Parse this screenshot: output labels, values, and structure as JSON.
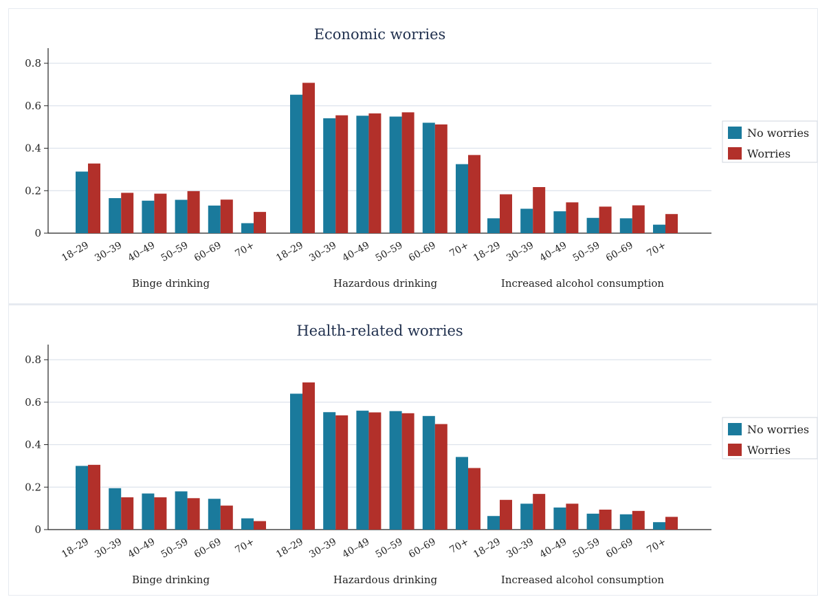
{
  "colors": {
    "no_worries": "#1a7a9c",
    "worries": "#b2302a",
    "grid": "#dde3ec",
    "axis": "#222222"
  },
  "chart_data": [
    {
      "type": "bar",
      "title": "Economic worries",
      "ylim": [
        0,
        0.8
      ],
      "yticks": [
        "0",
        "0.2",
        "0.4",
        "0.6",
        "0.8"
      ],
      "grid": true,
      "legend_position": "right",
      "legend": [
        "No worries",
        "Worries"
      ],
      "groups": [
        {
          "label": "Binge drinking",
          "categories": [
            "18–29",
            "30–39",
            "40–49",
            "50–59",
            "60–69",
            "70+"
          ],
          "series": [
            {
              "name": "No worries",
              "values": [
                0.29,
                0.165,
                0.153,
                0.157,
                0.13,
                0.047
              ]
            },
            {
              "name": "Worries",
              "values": [
                0.328,
                0.19,
                0.186,
                0.198,
                0.158,
                0.1
              ]
            }
          ]
        },
        {
          "label": "Hazardous drinking",
          "categories": [
            "18–29",
            "30–39",
            "40–49",
            "50–59",
            "60–69",
            "70+"
          ],
          "series": [
            {
              "name": "No worries",
              "values": [
                0.652,
                0.541,
                0.553,
                0.549,
                0.52,
                0.325
              ]
            },
            {
              "name": "Worries",
              "values": [
                0.708,
                0.555,
                0.564,
                0.569,
                0.512,
                0.368
              ]
            }
          ]
        },
        {
          "label": "Increased alcohol consumption",
          "categories": [
            "18–29",
            "30–39",
            "40–49",
            "50–59",
            "60–69",
            "70+"
          ],
          "series": [
            {
              "name": "No worries",
              "values": [
                0.07,
                0.115,
                0.103,
                0.072,
                0.07,
                0.04
              ]
            },
            {
              "name": "Worries",
              "values": [
                0.183,
                0.217,
                0.145,
                0.125,
                0.131,
                0.09
              ]
            }
          ]
        }
      ]
    },
    {
      "type": "bar",
      "title": "Health-related worries",
      "ylim": [
        0,
        0.8
      ],
      "yticks": [
        "0",
        "0.2",
        "0.4",
        "0.6",
        "0.8"
      ],
      "grid": true,
      "legend_position": "right",
      "legend": [
        "No worries",
        "Worries"
      ],
      "groups": [
        {
          "label": "Binge drinking",
          "categories": [
            "18–29",
            "30–39",
            "40–49",
            "50–59",
            "60–69",
            "70+"
          ],
          "series": [
            {
              "name": "No worries",
              "values": [
                0.3,
                0.195,
                0.17,
                0.18,
                0.145,
                0.053
              ]
            },
            {
              "name": "Worries",
              "values": [
                0.305,
                0.152,
                0.152,
                0.148,
                0.113,
                0.04
              ]
            }
          ]
        },
        {
          "label": "Hazardous drinking",
          "categories": [
            "18–29",
            "30–39",
            "40–49",
            "50–59",
            "60–69",
            "70+"
          ],
          "series": [
            {
              "name": "No worries",
              "values": [
                0.64,
                0.553,
                0.56,
                0.558,
                0.535,
                0.342
              ]
            },
            {
              "name": "Worries",
              "values": [
                0.693,
                0.538,
                0.552,
                0.548,
                0.497,
                0.29
              ]
            }
          ]
        },
        {
          "label": "Increased alcohol consumption",
          "categories": [
            "18–29",
            "30–39",
            "40–49",
            "50–59",
            "60–69",
            "70+"
          ],
          "series": [
            {
              "name": "No worries",
              "values": [
                0.064,
                0.122,
                0.104,
                0.075,
                0.072,
                0.035
              ]
            },
            {
              "name": "Worries",
              "values": [
                0.14,
                0.168,
                0.122,
                0.094,
                0.088,
                0.06
              ]
            }
          ]
        }
      ]
    }
  ]
}
